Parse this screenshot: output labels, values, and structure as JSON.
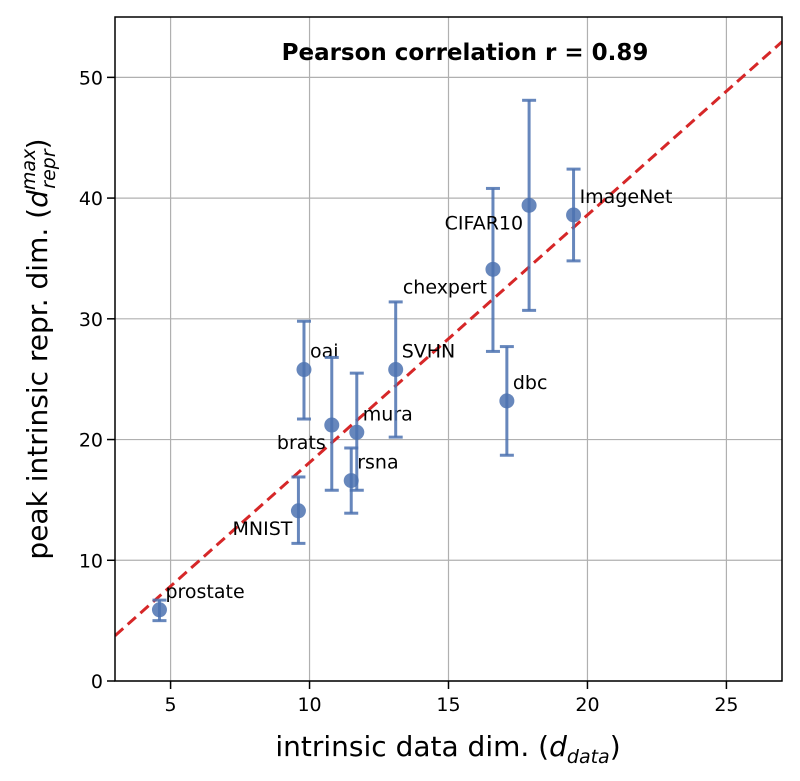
{
  "chart_data": {
    "type": "scatter",
    "title": "",
    "annotation": "Pearson correlation r = 0.89",
    "xlabel": {
      "text": "intrinsic data dim. (",
      "sym": "d",
      "sub": "data",
      "close": ")"
    },
    "ylabel": {
      "text": "peak intrinsic repr. dim. (",
      "sym": "d",
      "sub": "repr",
      "sup": "max",
      "close": ")"
    },
    "xlim": [
      3,
      27
    ],
    "ylim": [
      0,
      55
    ],
    "xticks": [
      5,
      10,
      15,
      20,
      25
    ],
    "yticks": [
      0,
      10,
      20,
      30,
      40,
      50
    ],
    "xtick_labels": [
      "5",
      "10",
      "15",
      "20",
      "25"
    ],
    "ytick_labels": [
      "0",
      "10",
      "20",
      "30",
      "40",
      "50"
    ],
    "grid": true,
    "colors": {
      "points": "#4c72b0",
      "fit": "#d62728"
    },
    "points": [
      {
        "label": "prostate",
        "x": 4.6,
        "y": 5.9,
        "err_low": 0.9,
        "err_high": 0.8,
        "label_pos": "right-above"
      },
      {
        "label": "MNIST",
        "x": 9.6,
        "y": 14.1,
        "err_low": 2.7,
        "err_high": 2.8,
        "label_pos": "left-below"
      },
      {
        "label": "oai",
        "x": 9.8,
        "y": 25.8,
        "err_low": 4.1,
        "err_high": 4.0,
        "label_pos": "right-above"
      },
      {
        "label": "brats",
        "x": 10.8,
        "y": 21.2,
        "err_low": 5.4,
        "err_high": 5.6,
        "label_pos": "left-below"
      },
      {
        "label": "rsna",
        "x": 11.5,
        "y": 16.6,
        "err_low": 2.7,
        "err_high": 2.7,
        "label_pos": "right-above"
      },
      {
        "label": "mura",
        "x": 11.7,
        "y": 20.6,
        "err_low": 4.8,
        "err_high": 4.9,
        "label_pos": "right-above"
      },
      {
        "label": "SVHN",
        "x": 13.1,
        "y": 25.8,
        "err_low": 5.6,
        "err_high": 5.6,
        "label_pos": "right-above"
      },
      {
        "label": "chexpert",
        "x": 16.6,
        "y": 34.1,
        "err_low": 6.8,
        "err_high": 6.7,
        "label_pos": "left-below"
      },
      {
        "label": "dbc",
        "x": 17.1,
        "y": 23.2,
        "err_low": 4.5,
        "err_high": 4.5,
        "label_pos": "right-above"
      },
      {
        "label": "CIFAR10",
        "x": 17.9,
        "y": 39.4,
        "err_low": 8.7,
        "err_high": 8.7,
        "label_pos": "left-below"
      },
      {
        "label": "ImageNet",
        "x": 19.5,
        "y": 38.6,
        "err_low": 3.8,
        "err_high": 3.8,
        "label_pos": "right-above"
      }
    ],
    "fit_line": {
      "style": "dashed",
      "x": [
        3,
        27
      ],
      "y": [
        3.75,
        52.95
      ]
    }
  }
}
